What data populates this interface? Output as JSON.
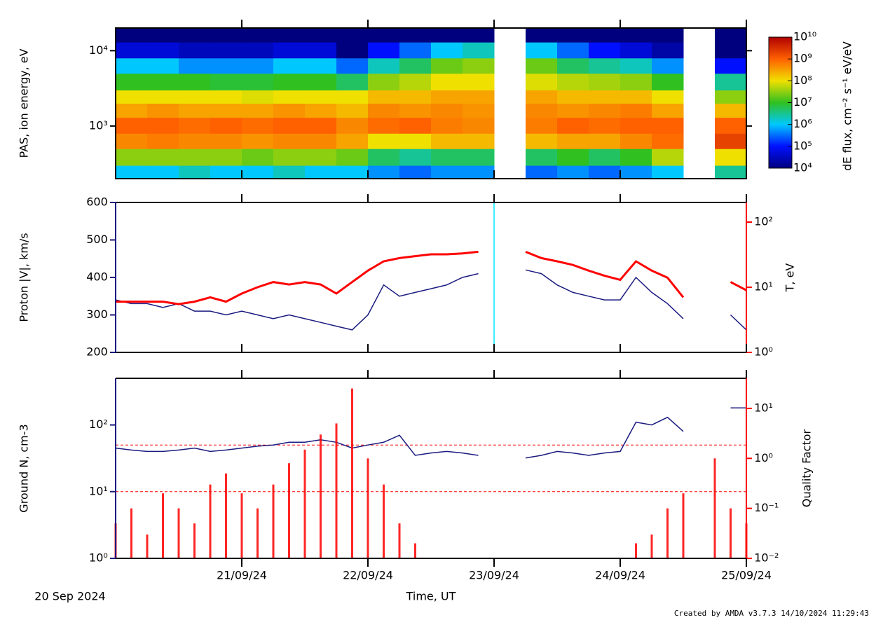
{
  "chart_data": [
    {
      "type": "heatmap",
      "ylabel": "PAS, ion energy, eV",
      "clabel": "dE flux, cm⁻² s⁻¹ eV/eV",
      "x_bins": [
        0,
        0.25,
        0.5,
        0.75,
        1,
        1.25,
        1.5,
        1.75,
        2,
        2.25,
        2.5,
        2.75,
        3,
        3.25,
        3.5,
        3.75,
        4,
        4.25,
        4.5,
        4.75,
        5
      ],
      "y_bins": [
        200,
        300,
        500,
        800,
        1300,
        2000,
        3000,
        5000,
        8000,
        13000,
        20000
      ],
      "z": [
        [
          1000000.0,
          1000000.0,
          2000000.0,
          1000000.0,
          1000000.0,
          2000000.0,
          1000000.0,
          1000000.0,
          500000.0,
          300000.0,
          500000.0,
          500000.0,
          null,
          300000.0,
          500000.0,
          300000.0,
          500000.0,
          1000000.0,
          null,
          3000000.0
        ],
        [
          30000000.0,
          30000000.0,
          30000000.0,
          30000000.0,
          20000000.0,
          30000000.0,
          30000000.0,
          20000000.0,
          5000000.0,
          3000000.0,
          5000000.0,
          5000000.0,
          null,
          5000000.0,
          10000000.0,
          5000000.0,
          10000000.0,
          50000000.0,
          null,
          100000000.0
        ],
        [
          500000000.0,
          600000000.0,
          500000000.0,
          500000000.0,
          400000000.0,
          500000000.0,
          500000000.0,
          300000000.0,
          100000000.0,
          100000000.0,
          200000000.0,
          200000000.0,
          null,
          200000000.0,
          300000000.0,
          300000000.0,
          500000000.0,
          800000000.0,
          null,
          2000000000.0
        ],
        [
          1000000000.0,
          1000000000.0,
          800000000.0,
          1000000000.0,
          800000000.0,
          1000000000.0,
          1000000000.0,
          500000000.0,
          800000000.0,
          1000000000.0,
          600000000.0,
          500000000.0,
          null,
          600000000.0,
          1000000000.0,
          800000000.0,
          1000000000.0,
          1000000000.0,
          null,
          1000000000.0
        ],
        [
          300000000.0,
          400000000.0,
          300000000.0,
          300000000.0,
          300000000.0,
          400000000.0,
          300000000.0,
          200000000.0,
          500000000.0,
          400000000.0,
          500000000.0,
          400000000.0,
          null,
          500000000.0,
          400000000.0,
          500000000.0,
          600000000.0,
          300000000.0,
          null,
          200000000.0
        ],
        [
          100000000.0,
          100000000.0,
          100000000.0,
          100000000.0,
          80000000.0,
          100000000.0,
          100000000.0,
          100000000.0,
          200000000.0,
          200000000.0,
          300000000.0,
          300000000.0,
          null,
          300000000.0,
          200000000.0,
          200000000.0,
          200000000.0,
          100000000.0,
          null,
          30000000.0
        ],
        [
          10000000.0,
          10000000.0,
          10000000.0,
          8000000.0,
          8000000.0,
          10000000.0,
          10000000.0,
          5000000.0,
          30000000.0,
          50000000.0,
          100000000.0,
          100000000.0,
          null,
          80000000.0,
          50000000.0,
          40000000.0,
          30000000.0,
          10000000.0,
          null,
          3000000.0
        ],
        [
          1000000.0,
          1000000.0,
          500000.0,
          500000.0,
          500000.0,
          1000000.0,
          1000000.0,
          300000.0,
          2000000.0,
          5000000.0,
          20000000.0,
          30000000.0,
          null,
          20000000.0,
          5000000.0,
          3000000.0,
          2000000.0,
          500000.0,
          null,
          100000.0
        ],
        [
          50000.0,
          50000.0,
          30000.0,
          30000.0,
          30000.0,
          50000.0,
          50000.0,
          10000.0,
          100000.0,
          300000.0,
          1000000.0,
          2000000.0,
          null,
          1000000.0,
          300000.0,
          100000.0,
          50000.0,
          20000.0,
          null,
          10000.0
        ],
        [
          10000.0,
          10000.0,
          10000.0,
          10000.0,
          10000.0,
          10000.0,
          10000.0,
          10000.0,
          10000.0,
          10000.0,
          10000.0,
          10000.0,
          null,
          10000.0,
          10000.0,
          10000.0,
          10000.0,
          10000.0,
          null,
          10000.0
        ]
      ],
      "ylim": [
        200,
        20000
      ],
      "ylog": true,
      "yticks": [
        {
          "value": 1000,
          "label": "10³"
        },
        {
          "value": 10000,
          "label": "10⁴"
        }
      ],
      "clim": [
        10000,
        10000000000
      ],
      "clog": true,
      "cticks": [
        {
          "value": 10000,
          "label": "10⁴"
        },
        {
          "value": 100000,
          "label": "10⁵"
        },
        {
          "value": 1000000,
          "label": "10⁶"
        },
        {
          "value": 10000000,
          "label": "10⁷"
        },
        {
          "value": 100000000,
          "label": "10⁸"
        },
        {
          "value": 1000000000,
          "label": "10⁹"
        },
        {
          "value": 10000000000,
          "label": "10¹⁰"
        }
      ],
      "colormap": [
        "#00007f",
        "#0010ff",
        "#00c8ff",
        "#30c020",
        "#f0e000",
        "#ff6000",
        "#b00000"
      ]
    },
    {
      "type": "line",
      "ylabel": "Proton |V|, km/s",
      "y2label": "T, eV",
      "x": [
        0,
        0.125,
        0.25,
        0.375,
        0.5,
        0.625,
        0.75,
        0.875,
        1,
        1.125,
        1.25,
        1.375,
        1.5,
        1.625,
        1.75,
        1.875,
        2,
        2.125,
        2.25,
        2.375,
        2.5,
        2.625,
        2.75,
        2.875,
        3,
        3.125,
        3.25,
        3.375,
        3.5,
        3.625,
        3.75,
        3.875,
        4,
        4.125,
        4.25,
        4.375,
        4.5,
        4.625,
        4.75,
        4.875,
        5
      ],
      "series": [
        {
          "color": "#1a1a80",
          "values": [
            340,
            330,
            330,
            320,
            330,
            310,
            310,
            300,
            310,
            300,
            290,
            300,
            290,
            280,
            270,
            260,
            300,
            380,
            350,
            360,
            370,
            380,
            400,
            410,
            null,
            null,
            420,
            410,
            380,
            360,
            350,
            340,
            340,
            400,
            360,
            330,
            290,
            null,
            null,
            300,
            260
          ]
        },
        {
          "color": "#ff0000",
          "axis": "y2",
          "values": [
            6,
            6,
            6,
            6,
            5.5,
            6,
            7,
            6,
            8,
            10,
            12,
            11,
            12,
            11,
            8,
            12,
            18,
            25,
            28,
            30,
            32,
            32,
            33,
            35,
            null,
            null,
            35,
            28,
            25,
            22,
            18,
            15,
            13,
            25,
            18,
            14,
            7,
            null,
            null,
            12,
            9
          ]
        }
      ],
      "ylim": [
        200,
        600
      ],
      "yticks": [
        200,
        300,
        400,
        500,
        600
      ],
      "y2lim": [
        1,
        200
      ],
      "y2log": true,
      "y2ticks": [
        {
          "value": 1,
          "label": "10⁰"
        },
        {
          "value": 10,
          "label": "10¹"
        },
        {
          "value": 100,
          "label": "10²"
        }
      ],
      "vline": 3,
      "vline_color": "#00e5ff"
    },
    {
      "type": "line",
      "ylabel": "Ground N, cm-3",
      "y2label": "Quality Factor",
      "x": [
        0,
        0.125,
        0.25,
        0.375,
        0.5,
        0.625,
        0.75,
        0.875,
        1,
        1.125,
        1.25,
        1.375,
        1.5,
        1.625,
        1.75,
        1.875,
        2,
        2.125,
        2.25,
        2.375,
        2.5,
        2.625,
        2.75,
        2.875,
        3,
        3.125,
        3.25,
        3.375,
        3.5,
        3.625,
        3.75,
        3.875,
        4,
        4.125,
        4.25,
        4.375,
        4.5,
        4.625,
        4.75,
        4.875,
        5
      ],
      "series": [
        {
          "color": "#1a1a80",
          "values": [
            45,
            42,
            40,
            40,
            42,
            45,
            40,
            42,
            45,
            48,
            50,
            55,
            55,
            60,
            55,
            45,
            50,
            55,
            70,
            35,
            38,
            40,
            38,
            35,
            null,
            null,
            32,
            35,
            40,
            38,
            35,
            38,
            40,
            110,
            100,
            130,
            80,
            null,
            null,
            180,
            180
          ]
        },
        {
          "color": "#ff0000",
          "axis": "y2",
          "type": "scatter",
          "values": [
            0.05,
            0.1,
            0.03,
            0.2,
            0.1,
            0.05,
            0.3,
            0.5,
            0.2,
            0.1,
            0.3,
            0.8,
            1.5,
            3,
            5,
            25,
            1,
            0.3,
            0.05,
            0.02,
            null,
            null,
            null,
            null,
            null,
            null,
            null,
            null,
            null,
            null,
            null,
            null,
            null,
            0.02,
            0.03,
            0.1,
            0.2,
            null,
            1,
            0.1,
            0.05
          ]
        }
      ],
      "ylim": [
        1,
        500
      ],
      "ylog": true,
      "yticks": [
        {
          "value": 1,
          "label": "10⁰"
        },
        {
          "value": 10,
          "label": "10¹"
        },
        {
          "value": 100,
          "label": "10²"
        }
      ],
      "y2lim": [
        0.01,
        40
      ],
      "y2log": true,
      "y2ticks": [
        {
          "value": 0.01,
          "label": "10⁻²"
        },
        {
          "value": 0.1,
          "label": "10⁻¹"
        },
        {
          "value": 1,
          "label": "10⁰"
        },
        {
          "value": 10,
          "label": "10¹"
        }
      ],
      "hlines": [
        10,
        50
      ],
      "hline_color": "#ff0000",
      "xlim": [
        0,
        5
      ],
      "xticks": [
        {
          "value": 1,
          "label": "21/09/24"
        },
        {
          "value": 2,
          "label": "22/09/24"
        },
        {
          "value": 3,
          "label": "23/09/24"
        },
        {
          "value": 4,
          "label": "24/09/24"
        },
        {
          "value": 5,
          "label": "25/09/24"
        }
      ],
      "x_origin_label": "20 Sep 2024",
      "xlabel": "Time, UT"
    }
  ],
  "footer": "Created by AMDA v3.7.3 14/10/2024 11:29:43"
}
